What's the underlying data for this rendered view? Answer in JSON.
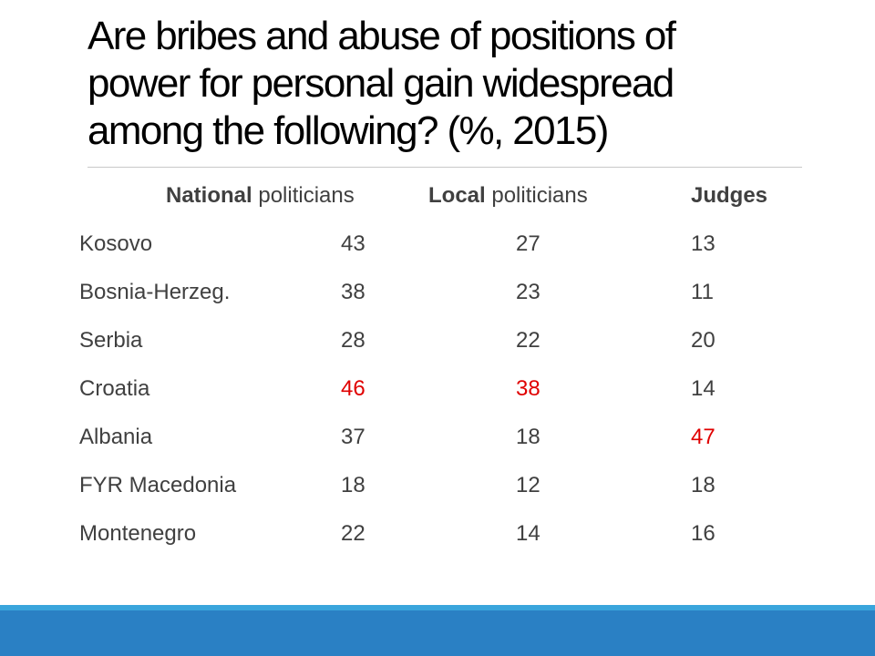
{
  "slide": {
    "title": "Are bribes and abuse of positions of power for personal gain widespread among the following? (%, 2015)",
    "highlight_color": "#e00000",
    "footer_color": "#2a80c4"
  },
  "table": {
    "headers": {
      "national_bold": "National",
      "national_rest": "politicians",
      "local_bold": "Local",
      "local_rest": "politicians",
      "judges": "Judges"
    },
    "rows": [
      {
        "country": "Kosovo",
        "national": "43",
        "local": "27",
        "judges": "13",
        "highlight": []
      },
      {
        "country": "Bosnia-Herzeg.",
        "national": "38",
        "local": "23",
        "judges": "11",
        "highlight": []
      },
      {
        "country": "Serbia",
        "national": "28",
        "local": "22",
        "judges": "20",
        "highlight": []
      },
      {
        "country": "Croatia",
        "national": "46",
        "local": "38",
        "judges": "14",
        "highlight": [
          "national",
          "local"
        ]
      },
      {
        "country": "Albania",
        "national": "37",
        "local": "18",
        "judges": "47",
        "highlight": [
          "judges"
        ]
      },
      {
        "country": "FYR Macedonia",
        "national": "18",
        "local": "12",
        "judges": "18",
        "highlight": []
      },
      {
        "country": "Montenegro",
        "national": "22",
        "local": "14",
        "judges": "16",
        "highlight": []
      }
    ]
  }
}
